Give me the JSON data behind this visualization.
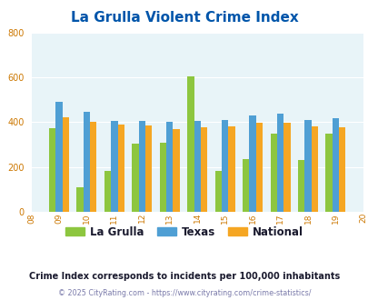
{
  "title": "La Grulla Violent Crime Index",
  "plot_years": [
    2009,
    2010,
    2011,
    2012,
    2013,
    2014,
    2015,
    2016,
    2017,
    2018,
    2019
  ],
  "all_xtick_labels": [
    "08",
    "09",
    "10",
    "11",
    "12",
    "13",
    "14",
    "15",
    "16",
    "17",
    "18",
    "19",
    "20"
  ],
  "la_grulla": [
    375,
    110,
    183,
    305,
    308,
    605,
    182,
    235,
    348,
    232,
    348
  ],
  "texas": [
    493,
    448,
    405,
    407,
    402,
    407,
    412,
    432,
    438,
    412,
    418
  ],
  "national": [
    424,
    403,
    388,
    387,
    368,
    376,
    381,
    398,
    398,
    381,
    379
  ],
  "colors": {
    "la_grulla": "#8dc63f",
    "texas": "#4f9fd4",
    "national": "#f5a623"
  },
  "ylim": [
    0,
    800
  ],
  "yticks": [
    0,
    200,
    400,
    600,
    800
  ],
  "background_color": "#e8f4f8",
  "title_color": "#0055aa",
  "tick_color": "#cc7700",
  "subtitle": "Crime Index corresponds to incidents per 100,000 inhabitants",
  "footer": "© 2025 CityRating.com - https://www.cityrating.com/crime-statistics/",
  "subtitle_color": "#1a1a2e",
  "footer_color": "#7a7aaa",
  "legend_labels": [
    "La Grulla",
    "Texas",
    "National"
  ]
}
